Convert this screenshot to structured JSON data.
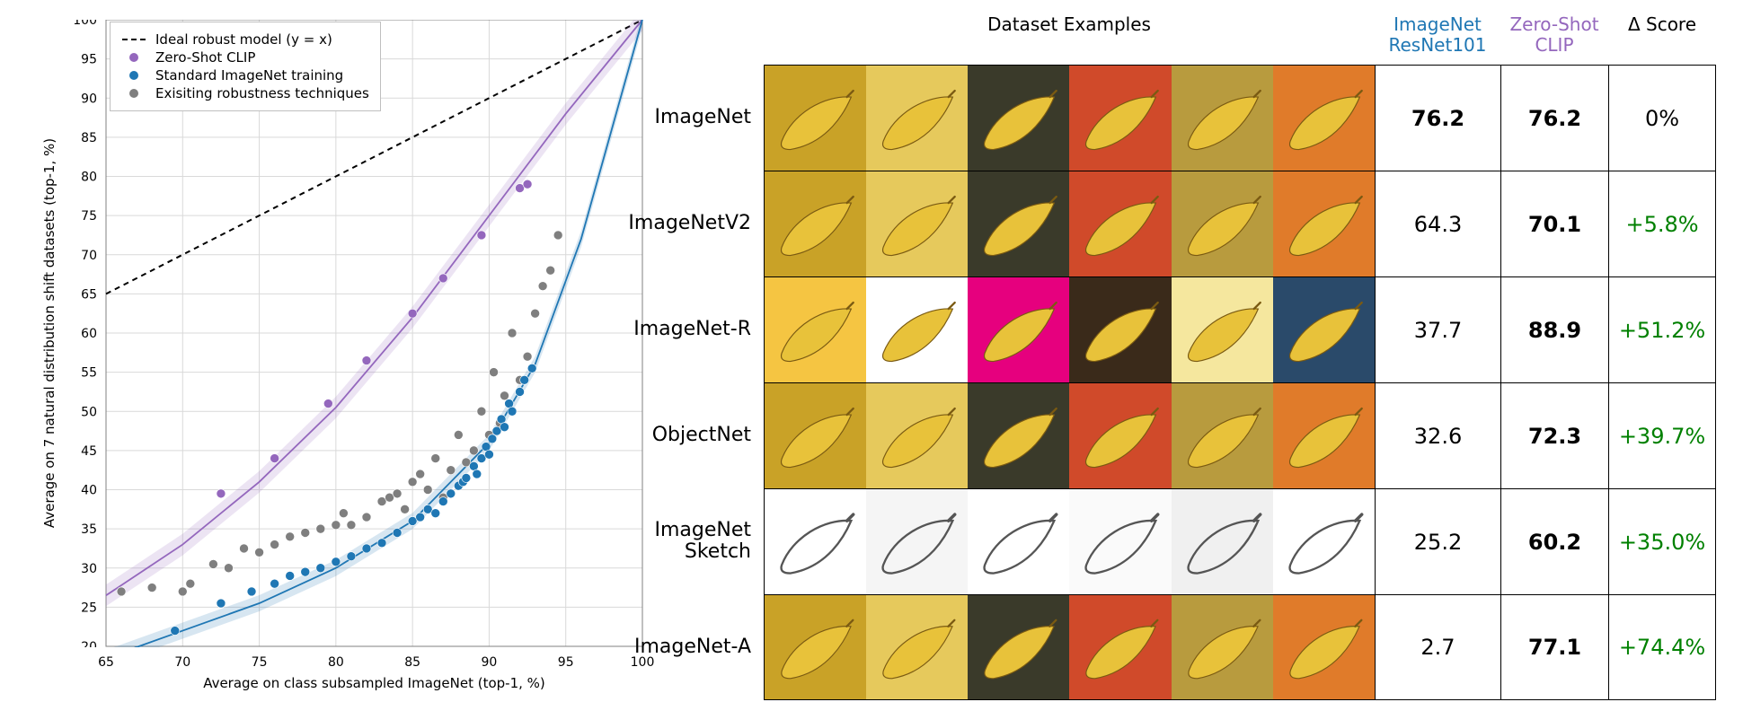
{
  "chart": {
    "type": "scatter",
    "xlabel": "Average on class subsampled ImageNet (top-1, %)",
    "ylabel": "Average on 7 natural distribution shift datasets (top-1, %)",
    "label_fontsize": 15,
    "tick_fontsize": 14,
    "xlim": [
      65,
      100
    ],
    "ylim": [
      20,
      100
    ],
    "xticks": [
      65,
      70,
      75,
      80,
      85,
      90,
      95,
      100
    ],
    "yticks": [
      20,
      25,
      30,
      35,
      40,
      45,
      50,
      55,
      60,
      65,
      70,
      75,
      80,
      85,
      90,
      95,
      100
    ],
    "background_color": "#ffffff",
    "grid_color": "#d9d9d9",
    "plot_border_color": "#808080",
    "legend": {
      "items": [
        {
          "label": "Ideal robust model (y = x)",
          "type": "dash",
          "color": "#000000"
        },
        {
          "label": "Zero-Shot CLIP",
          "type": "dot",
          "color": "#9467bd"
        },
        {
          "label": "Standard ImageNet training",
          "type": "dot",
          "color": "#1f77b4"
        },
        {
          "label": "Exisiting robustness techniques",
          "type": "dot",
          "color": "#7f7f7f"
        }
      ]
    },
    "ideal_line": {
      "x1": 65,
      "y1": 65,
      "x2": 100,
      "y2": 100,
      "color": "#000000",
      "dash": "6,5",
      "width": 2
    },
    "series": {
      "clip": {
        "color": "#9467bd",
        "points": [
          [
            72.5,
            39.5
          ],
          [
            76,
            44
          ],
          [
            79.5,
            51
          ],
          [
            82,
            56.5
          ],
          [
            85,
            62.5
          ],
          [
            87,
            67
          ],
          [
            89.5,
            72.5
          ],
          [
            92,
            78.5
          ],
          [
            92.5,
            79
          ]
        ],
        "fit_curve": [
          [
            65,
            26.5
          ],
          [
            70,
            33
          ],
          [
            75,
            41
          ],
          [
            80,
            50.5
          ],
          [
            85,
            62
          ],
          [
            90,
            75
          ],
          [
            95,
            88
          ],
          [
            100,
            100
          ]
        ],
        "band_width": 4,
        "line_width": 1.8,
        "marker_r": 5
      },
      "standard": {
        "color": "#1f77b4",
        "points": [
          [
            69.5,
            22
          ],
          [
            72.5,
            25.5
          ],
          [
            74.5,
            27
          ],
          [
            76,
            28
          ],
          [
            77,
            29
          ],
          [
            78,
            29.5
          ],
          [
            79,
            30
          ],
          [
            80,
            30.8
          ],
          [
            81,
            31.5
          ],
          [
            82,
            32.5
          ],
          [
            83,
            33.2
          ],
          [
            84,
            34.5
          ],
          [
            85,
            36
          ],
          [
            85.5,
            36.5
          ],
          [
            86,
            37.5
          ],
          [
            86.5,
            37
          ],
          [
            87,
            38.5
          ],
          [
            87.5,
            39.5
          ],
          [
            88,
            40.5
          ],
          [
            88.3,
            41
          ],
          [
            88.5,
            41.5
          ],
          [
            89,
            43
          ],
          [
            89.2,
            42
          ],
          [
            89.5,
            44
          ],
          [
            89.8,
            45.5
          ],
          [
            90,
            44.5
          ],
          [
            90.2,
            46.5
          ],
          [
            90.5,
            47.5
          ],
          [
            90.8,
            49
          ],
          [
            91,
            48
          ],
          [
            91.3,
            51
          ],
          [
            91.5,
            50
          ],
          [
            92,
            52.5
          ],
          [
            92.3,
            54
          ],
          [
            92.8,
            55.5
          ]
        ],
        "fit_curve": [
          [
            65,
            18.5
          ],
          [
            70,
            22
          ],
          [
            75,
            25.5
          ],
          [
            80,
            30
          ],
          [
            85,
            36
          ],
          [
            90,
            46
          ],
          [
            93,
            56
          ],
          [
            96,
            72
          ],
          [
            98,
            86
          ],
          [
            100,
            100
          ]
        ],
        "band_width": 3,
        "line_width": 1.8,
        "marker_r": 5
      },
      "existing": {
        "color": "#7f7f7f",
        "points": [
          [
            66,
            27
          ],
          [
            68,
            27.5
          ],
          [
            70,
            27
          ],
          [
            70.5,
            28
          ],
          [
            72,
            30.5
          ],
          [
            73,
            30
          ],
          [
            74,
            32.5
          ],
          [
            75,
            32
          ],
          [
            76,
            33
          ],
          [
            77,
            34
          ],
          [
            78,
            34.5
          ],
          [
            79,
            35
          ],
          [
            80,
            35.5
          ],
          [
            80.5,
            37
          ],
          [
            81,
            35.5
          ],
          [
            82,
            36.5
          ],
          [
            83,
            38.5
          ],
          [
            83.5,
            39
          ],
          [
            84,
            39.5
          ],
          [
            84.5,
            37.5
          ],
          [
            85,
            41
          ],
          [
            85.5,
            42
          ],
          [
            86,
            40
          ],
          [
            86.5,
            44
          ],
          [
            87,
            39
          ],
          [
            87.5,
            42.5
          ],
          [
            88,
            47
          ],
          [
            88.5,
            43.5
          ],
          [
            89,
            45
          ],
          [
            89.5,
            50
          ],
          [
            90,
            47
          ],
          [
            90.3,
            55
          ],
          [
            90.7,
            48.5
          ],
          [
            91,
            52
          ],
          [
            91.5,
            60
          ],
          [
            92,
            54
          ],
          [
            92.5,
            57
          ],
          [
            93,
            62.5
          ],
          [
            93.5,
            66
          ],
          [
            94,
            68
          ],
          [
            94.5,
            72.5
          ]
        ],
        "marker_r": 5
      }
    }
  },
  "table": {
    "header": {
      "dataset_examples": "Dataset Examples",
      "col1": "ImageNet\nResNet101",
      "col2": "Zero-Shot\nCLIP",
      "col3": "Δ Score",
      "col1_color": "#1f77b4",
      "col2_color": "#9467bd"
    },
    "rows": [
      {
        "label": "ImageNet",
        "resnet": "76.2",
        "clip": "76.2",
        "delta": "0%",
        "delta_color": "#000000",
        "bold_resnet": true,
        "bold_clip": true,
        "thumbs_style": "photo"
      },
      {
        "label": "ImageNetV2",
        "resnet": "64.3",
        "clip": "70.1",
        "delta": "+5.8%",
        "delta_color": "#008000",
        "bold_clip": true,
        "thumbs_style": "photo"
      },
      {
        "label": "ImageNet-R",
        "resnet": "37.7",
        "clip": "88.9",
        "delta": "+51.2%",
        "delta_color": "#008000",
        "bold_clip": true,
        "thumbs_style": "rendition"
      },
      {
        "label": "ObjectNet",
        "resnet": "32.6",
        "clip": "72.3",
        "delta": "+39.7%",
        "delta_color": "#008000",
        "bold_clip": true,
        "thumbs_style": "photo"
      },
      {
        "label": "ImageNet\nSketch",
        "resnet": "25.2",
        "clip": "60.2",
        "delta": "+35.0%",
        "delta_color": "#008000",
        "bold_clip": true,
        "thumbs_style": "sketch"
      },
      {
        "label": "ImageNet-A",
        "resnet": "2.7",
        "clip": "77.1",
        "delta": "+74.4%",
        "delta_color": "#008000",
        "bold_clip": true,
        "thumbs_style": "photo"
      }
    ],
    "thumb_palettes": {
      "photo": [
        "#c9a227",
        "#e6c95c",
        "#3a3a2a",
        "#d04a2a",
        "#b89b3e",
        "#e07b2a"
      ],
      "rendition": [
        "#f5c542",
        "#ffffff",
        "#e6007e",
        "#3a2a1a",
        "#f5e79e",
        "#2a4a6a"
      ],
      "sketch": [
        "#ffffff",
        "#f5f5f5",
        "#ffffff",
        "#fafafa",
        "#f0f0f0",
        "#ffffff"
      ]
    },
    "banana_color": "#e8c23a",
    "sketch_stroke": "#555555"
  }
}
